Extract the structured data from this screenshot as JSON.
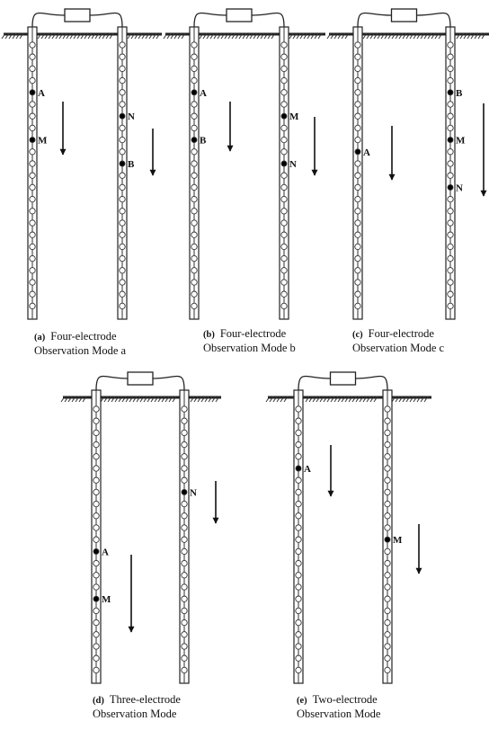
{
  "panels": [
    {
      "id": "a",
      "label": "(a)",
      "caption_line1": "Four-electrode",
      "caption_line2": "Observation Mode a",
      "left_electrodes": [
        "A",
        "M"
      ],
      "right_electrodes": [
        "N",
        "B"
      ]
    },
    {
      "id": "b",
      "label": "(b)",
      "caption_line1": "Four-electrode",
      "caption_line2": "Observation Mode b",
      "left_electrodes": [
        "A",
        "B"
      ],
      "right_electrodes": [
        "M",
        "N"
      ]
    },
    {
      "id": "c",
      "label": "(c)",
      "caption_line1": "Four-electrode",
      "caption_line2": "Observation Mode c",
      "left_electrodes": [
        "A"
      ],
      "right_electrodes": [
        "B",
        "M",
        "N"
      ]
    },
    {
      "id": "d",
      "label": "(d)",
      "caption_line1": "Three-electrode",
      "caption_line2": "Observation Mode",
      "left_electrodes": [
        "A",
        "M"
      ],
      "right_electrodes": [
        "N"
      ]
    },
    {
      "id": "e",
      "label": "(e)",
      "caption_line1": "Two-electrode",
      "caption_line2": "Observation Mode",
      "left_electrodes": [
        "A"
      ],
      "right_electrodes": [
        "M"
      ]
    }
  ]
}
